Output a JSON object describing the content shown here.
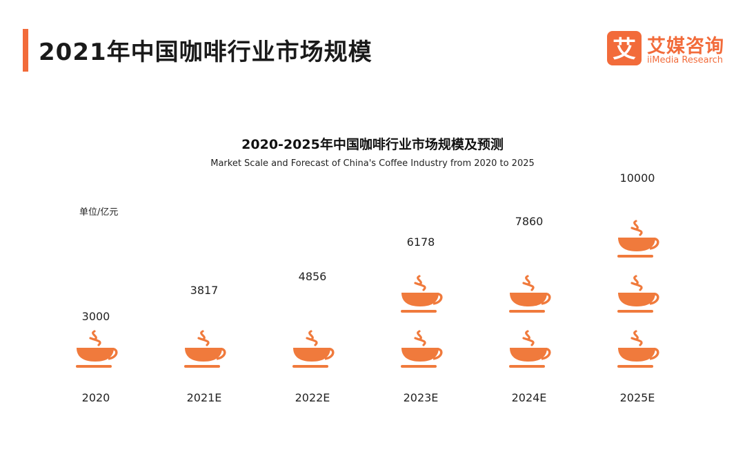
{
  "page": {
    "title": "2021年中国咖啡行业市场规模"
  },
  "logo": {
    "cn": "艾媒咨询",
    "en": "iiMedia Research",
    "mark_glyph": "艾"
  },
  "colors": {
    "accent": "#f26b3a",
    "cup": "#f07a3c"
  },
  "chart_data": {
    "type": "bar",
    "title": "2020-2025年中国咖啡行业市场规模及预测",
    "subtitle": "Market Scale and Forecast of China's Coffee Industry from 2020 to 2025",
    "unit_label": "单位/亿元",
    "categories": [
      "2020",
      "2021E",
      "2022E",
      "2023E",
      "2024E",
      "2025E"
    ],
    "values": [
      3000,
      3817,
      4856,
      6178,
      7860,
      10000
    ],
    "value_labels": [
      "3000",
      "3817",
      "4856",
      "6178",
      "7860",
      "10000"
    ],
    "ylim": [
      0,
      10000
    ],
    "grid": false,
    "legend": "none",
    "mark": "coffee-cup pictogram"
  }
}
